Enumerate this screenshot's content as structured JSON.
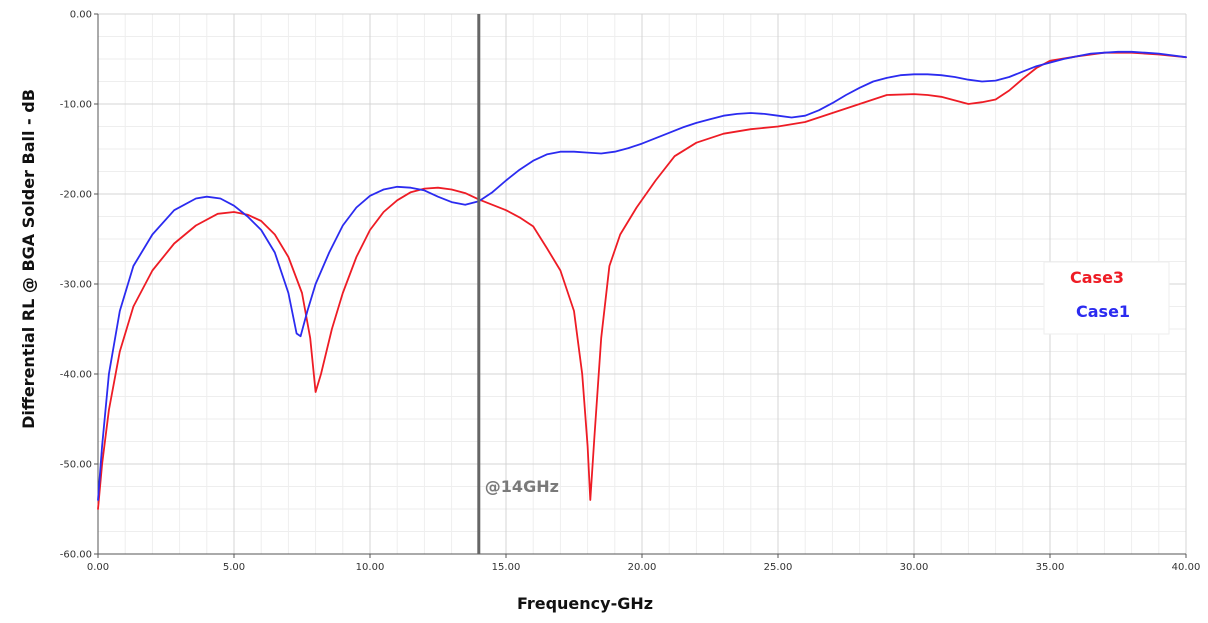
{
  "chart_data": {
    "type": "line",
    "title": "",
    "xlabel": "Frequency-GHz",
    "ylabel": "Differential RL @ BGA Solder Ball - dB",
    "xlim": [
      0,
      40
    ],
    "ylim": [
      -60,
      0
    ],
    "x_ticks": [
      "0.00",
      "5.00",
      "10.00",
      "15.00",
      "20.00",
      "25.00",
      "30.00",
      "35.00",
      "40.00"
    ],
    "y_ticks": [
      "0.00",
      "-10.00",
      "-20.00",
      "-30.00",
      "-40.00",
      "-50.00",
      "-60.00"
    ],
    "grid": true,
    "legend_position": "right",
    "annotation": {
      "label": "@14GHz",
      "x": 14
    },
    "series": [
      {
        "name": "Case3",
        "color": "#ee1c25",
        "points": [
          [
            0,
            -55
          ],
          [
            0.15,
            -50
          ],
          [
            0.4,
            -44
          ],
          [
            0.8,
            -37.5
          ],
          [
            1.3,
            -32.5
          ],
          [
            2,
            -28.5
          ],
          [
            2.8,
            -25.5
          ],
          [
            3.6,
            -23.5
          ],
          [
            4.4,
            -22.2
          ],
          [
            5,
            -22
          ],
          [
            5.5,
            -22.3
          ],
          [
            6,
            -23
          ],
          [
            6.5,
            -24.5
          ],
          [
            7,
            -27
          ],
          [
            7.5,
            -31
          ],
          [
            7.8,
            -36
          ],
          [
            8,
            -42
          ],
          [
            8.2,
            -40
          ],
          [
            8.6,
            -35
          ],
          [
            9,
            -31
          ],
          [
            9.5,
            -27
          ],
          [
            10,
            -24
          ],
          [
            10.5,
            -22
          ],
          [
            11,
            -20.7
          ],
          [
            11.5,
            -19.8
          ],
          [
            12,
            -19.4
          ],
          [
            12.5,
            -19.3
          ],
          [
            13,
            -19.5
          ],
          [
            13.5,
            -19.9
          ],
          [
            14,
            -20.6
          ],
          [
            14.5,
            -21.2
          ],
          [
            15,
            -21.8
          ],
          [
            15.5,
            -22.6
          ],
          [
            16,
            -23.6
          ],
          [
            16.5,
            -26
          ],
          [
            17,
            -28.5
          ],
          [
            17.5,
            -33
          ],
          [
            17.8,
            -40
          ],
          [
            18,
            -48
          ],
          [
            18.1,
            -54
          ],
          [
            18.25,
            -47
          ],
          [
            18.5,
            -36
          ],
          [
            18.8,
            -28
          ],
          [
            19.2,
            -24.5
          ],
          [
            19.8,
            -21.5
          ],
          [
            20.5,
            -18.5
          ],
          [
            21.2,
            -15.8
          ],
          [
            22,
            -14.3
          ],
          [
            23,
            -13.3
          ],
          [
            24,
            -12.8
          ],
          [
            25,
            -12.5
          ],
          [
            26,
            -12
          ],
          [
            27,
            -11
          ],
          [
            28,
            -10
          ],
          [
            29,
            -9
          ],
          [
            30,
            -8.9
          ],
          [
            30.5,
            -9
          ],
          [
            31,
            -9.2
          ],
          [
            31.5,
            -9.6
          ],
          [
            32,
            -10
          ],
          [
            32.5,
            -9.8
          ],
          [
            33,
            -9.5
          ],
          [
            33.5,
            -8.5
          ],
          [
            34,
            -7.2
          ],
          [
            34.5,
            -6
          ],
          [
            35,
            -5.2
          ],
          [
            36,
            -4.7
          ],
          [
            37,
            -4.3
          ],
          [
            38,
            -4.3
          ],
          [
            39,
            -4.5
          ],
          [
            40,
            -4.8
          ]
        ]
      },
      {
        "name": "Case1",
        "color": "#2b2bf0",
        "points": [
          [
            0,
            -54
          ],
          [
            0.15,
            -48
          ],
          [
            0.4,
            -40
          ],
          [
            0.8,
            -33
          ],
          [
            1.3,
            -28
          ],
          [
            2,
            -24.5
          ],
          [
            2.8,
            -21.8
          ],
          [
            3.6,
            -20.5
          ],
          [
            4,
            -20.3
          ],
          [
            4.5,
            -20.5
          ],
          [
            5,
            -21.3
          ],
          [
            5.5,
            -22.5
          ],
          [
            6,
            -24
          ],
          [
            6.5,
            -26.5
          ],
          [
            7,
            -31
          ],
          [
            7.3,
            -35.5
          ],
          [
            7.45,
            -35.8
          ],
          [
            7.7,
            -33
          ],
          [
            8,
            -30
          ],
          [
            8.5,
            -26.5
          ],
          [
            9,
            -23.5
          ],
          [
            9.5,
            -21.5
          ],
          [
            10,
            -20.2
          ],
          [
            10.5,
            -19.5
          ],
          [
            11,
            -19.2
          ],
          [
            11.5,
            -19.3
          ],
          [
            12,
            -19.6
          ],
          [
            12.5,
            -20.3
          ],
          [
            13,
            -20.9
          ],
          [
            13.5,
            -21.2
          ],
          [
            14,
            -20.8
          ],
          [
            14.5,
            -19.8
          ],
          [
            15,
            -18.5
          ],
          [
            15.5,
            -17.3
          ],
          [
            16,
            -16.3
          ],
          [
            16.5,
            -15.6
          ],
          [
            17,
            -15.3
          ],
          [
            17.5,
            -15.3
          ],
          [
            18,
            -15.4
          ],
          [
            18.5,
            -15.5
          ],
          [
            19,
            -15.3
          ],
          [
            19.5,
            -14.9
          ],
          [
            20,
            -14.4
          ],
          [
            20.5,
            -13.8
          ],
          [
            21,
            -13.2
          ],
          [
            21.5,
            -12.6
          ],
          [
            22,
            -12.1
          ],
          [
            22.5,
            -11.7
          ],
          [
            23,
            -11.3
          ],
          [
            23.5,
            -11.1
          ],
          [
            24,
            -11
          ],
          [
            24.5,
            -11.1
          ],
          [
            25,
            -11.3
          ],
          [
            25.5,
            -11.5
          ],
          [
            26,
            -11.3
          ],
          [
            26.5,
            -10.7
          ],
          [
            27,
            -9.9
          ],
          [
            27.5,
            -9
          ],
          [
            28,
            -8.2
          ],
          [
            28.5,
            -7.5
          ],
          [
            29,
            -7.1
          ],
          [
            29.5,
            -6.8
          ],
          [
            30,
            -6.7
          ],
          [
            30.5,
            -6.7
          ],
          [
            31,
            -6.8
          ],
          [
            31.5,
            -7
          ],
          [
            32,
            -7.3
          ],
          [
            32.5,
            -7.5
          ],
          [
            33,
            -7.4
          ],
          [
            33.5,
            -7
          ],
          [
            34,
            -6.4
          ],
          [
            34.5,
            -5.8
          ],
          [
            35,
            -5.4
          ],
          [
            35.5,
            -5
          ],
          [
            36,
            -4.7
          ],
          [
            36.5,
            -4.4
          ],
          [
            37,
            -4.3
          ],
          [
            37.5,
            -4.2
          ],
          [
            38,
            -4.2
          ],
          [
            38.5,
            -4.3
          ],
          [
            39,
            -4.4
          ],
          [
            39.5,
            -4.6
          ],
          [
            40,
            -4.8
          ]
        ]
      }
    ]
  }
}
